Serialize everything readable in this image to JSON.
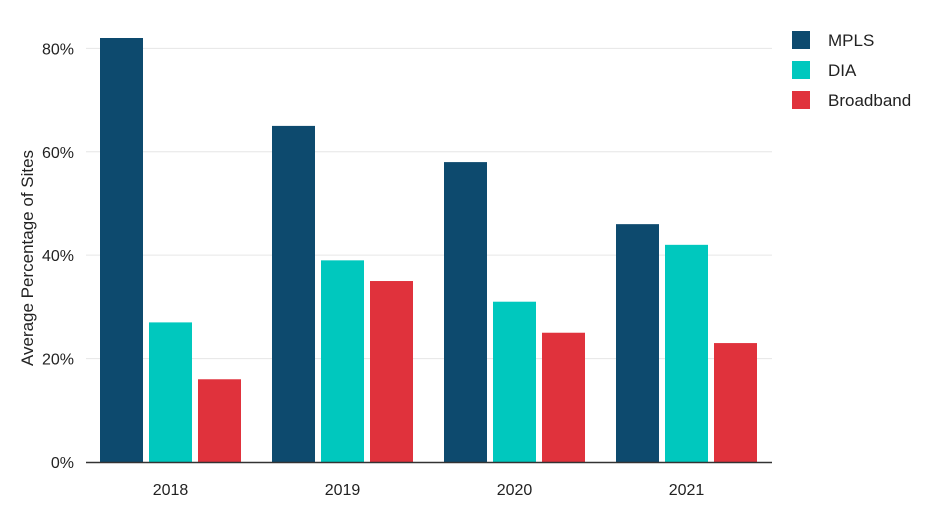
{
  "chart_data": {
    "type": "bar",
    "title": "",
    "xlabel": "",
    "ylabel": "Average Percentage of Sites",
    "categories": [
      "2018",
      "2019",
      "2020",
      "2021"
    ],
    "series": [
      {
        "name": "MPLS",
        "color": "#0d4a6e",
        "values": [
          82,
          65,
          58,
          46
        ]
      },
      {
        "name": "DIA",
        "color": "#00c8be",
        "values": [
          27,
          39,
          31,
          42
        ]
      },
      {
        "name": "Broadband",
        "color": "#e0323c",
        "values": [
          16,
          35,
          25,
          23
        ]
      }
    ],
    "ylim": [
      0,
      82
    ],
    "yticks": [
      0,
      20,
      40,
      60,
      80
    ],
    "ytick_labels": [
      "0%",
      "20%",
      "40%",
      "60%",
      "80%"
    ],
    "grid": true,
    "legend": "top-right"
  }
}
